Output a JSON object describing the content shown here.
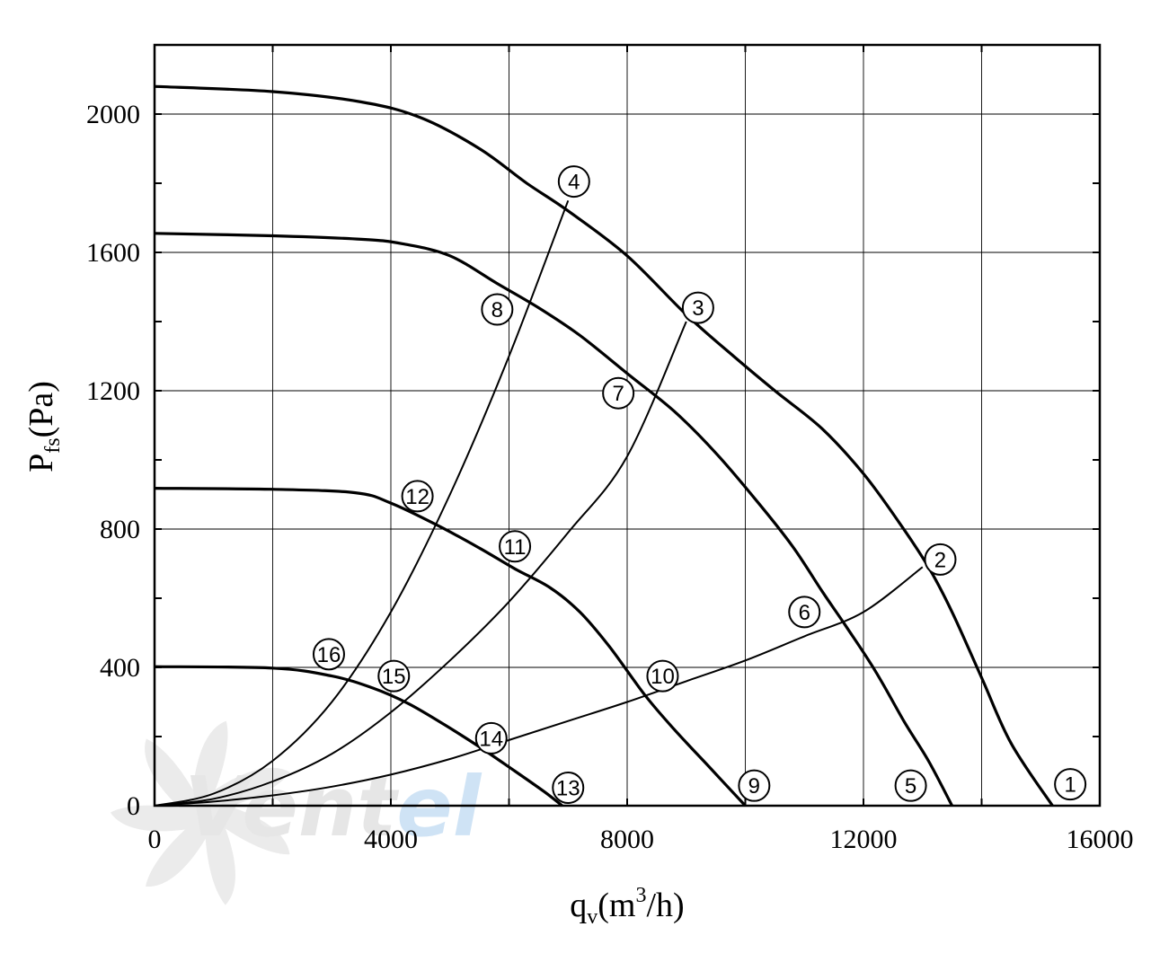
{
  "watermark": {
    "text_main": "Vent",
    "text_accent": "el",
    "color_main": "#e6e6e6",
    "color_accent": "#cfe3f5"
  },
  "chart_data": {
    "type": "line",
    "xlabel": {
      "base": "q",
      "sub": "v",
      "mid": "(m",
      "sup": "3",
      "tail": "/h)"
    },
    "ylabel": {
      "base": "P",
      "sub": "fs",
      "tail": "(Pa)"
    },
    "xlim": [
      0,
      16000
    ],
    "ylim": [
      0,
      2200
    ],
    "x_ticks": [
      0,
      4000,
      8000,
      12000,
      16000
    ],
    "x_tick_labels": [
      "0",
      "4000",
      "8000",
      "12000",
      "16000"
    ],
    "y_ticks": [
      0,
      400,
      800,
      1200,
      1600,
      2000
    ],
    "y_tick_labels": [
      "0",
      "400",
      "800",
      "1200",
      "1600",
      "2000"
    ],
    "x_grid": [
      0,
      2000,
      4000,
      6000,
      8000,
      10000,
      12000,
      14000,
      16000
    ],
    "y_grid": [
      0,
      400,
      800,
      1200,
      1600,
      2000
    ],
    "grid": true,
    "fan_curves": [
      {
        "points": [
          [
            0,
            2080
          ],
          [
            2000,
            2065
          ],
          [
            3500,
            2035
          ],
          [
            4500,
            1990
          ],
          [
            5500,
            1900
          ],
          [
            6300,
            1800
          ],
          [
            7000,
            1720
          ],
          [
            8000,
            1590
          ],
          [
            9000,
            1420
          ],
          [
            9800,
            1300
          ],
          [
            10500,
            1200
          ],
          [
            11300,
            1090
          ],
          [
            12000,
            960
          ],
          [
            12600,
            820
          ],
          [
            13100,
            690
          ],
          [
            13500,
            560
          ],
          [
            14000,
            370
          ],
          [
            14500,
            180
          ],
          [
            15200,
            0
          ]
        ]
      },
      {
        "points": [
          [
            0,
            1655
          ],
          [
            2000,
            1648
          ],
          [
            3500,
            1638
          ],
          [
            4200,
            1625
          ],
          [
            5000,
            1590
          ],
          [
            5800,
            1510
          ],
          [
            6500,
            1440
          ],
          [
            7200,
            1360
          ],
          [
            8000,
            1250
          ],
          [
            8800,
            1140
          ],
          [
            9500,
            1020
          ],
          [
            10200,
            880
          ],
          [
            10800,
            750
          ],
          [
            11300,
            620
          ],
          [
            11700,
            520
          ],
          [
            12200,
            390
          ],
          [
            12700,
            240
          ],
          [
            13100,
            130
          ],
          [
            13500,
            0
          ]
        ]
      },
      {
        "points": [
          [
            0,
            918
          ],
          [
            2000,
            915
          ],
          [
            3400,
            905
          ],
          [
            4000,
            875
          ],
          [
            4800,
            810
          ],
          [
            5500,
            745
          ],
          [
            6100,
            685
          ],
          [
            6700,
            630
          ],
          [
            7200,
            560
          ],
          [
            7700,
            460
          ],
          [
            8300,
            320
          ],
          [
            8800,
            220
          ],
          [
            9400,
            110
          ],
          [
            10000,
            0
          ]
        ]
      },
      {
        "points": [
          [
            0,
            402
          ],
          [
            2000,
            398
          ],
          [
            3000,
            375
          ],
          [
            3700,
            340
          ],
          [
            4300,
            295
          ],
          [
            4900,
            235
          ],
          [
            5500,
            170
          ],
          [
            6100,
            100
          ],
          [
            6600,
            40
          ],
          [
            6900,
            0
          ]
        ]
      }
    ],
    "system_curves": [
      {
        "points": [
          [
            0,
            0
          ],
          [
            1000,
            12
          ],
          [
            2000,
            30
          ],
          [
            3000,
            55
          ],
          [
            4000,
            90
          ],
          [
            5000,
            135
          ],
          [
            6000,
            190
          ],
          [
            7000,
            245
          ],
          [
            8000,
            300
          ],
          [
            9000,
            360
          ],
          [
            10000,
            420
          ],
          [
            11000,
            490
          ],
          [
            12000,
            560
          ],
          [
            13000,
            690
          ]
        ]
      },
      {
        "points": [
          [
            0,
            0
          ],
          [
            1000,
            20
          ],
          [
            2000,
            70
          ],
          [
            3000,
            150
          ],
          [
            4000,
            270
          ],
          [
            5000,
            420
          ],
          [
            6000,
            590
          ],
          [
            7000,
            790
          ],
          [
            8000,
            1010
          ],
          [
            9000,
            1400
          ]
        ]
      },
      {
        "points": [
          [
            0,
            0
          ],
          [
            1000,
            35
          ],
          [
            2000,
            130
          ],
          [
            3000,
            300
          ],
          [
            4000,
            560
          ],
          [
            5000,
            900
          ],
          [
            6000,
            1300
          ],
          [
            7000,
            1750
          ]
        ]
      }
    ],
    "markers": [
      {
        "label": "1",
        "x": 15500,
        "y": 62
      },
      {
        "label": "2",
        "x": 13300,
        "y": 712
      },
      {
        "label": "3",
        "x": 9200,
        "y": 1440
      },
      {
        "label": "4",
        "x": 7100,
        "y": 1805
      },
      {
        "label": "5",
        "x": 12800,
        "y": 58
      },
      {
        "label": "6",
        "x": 11000,
        "y": 560
      },
      {
        "label": "7",
        "x": 7850,
        "y": 1193
      },
      {
        "label": "8",
        "x": 5800,
        "y": 1435
      },
      {
        "label": "9",
        "x": 10150,
        "y": 58
      },
      {
        "label": "10",
        "x": 8600,
        "y": 375
      },
      {
        "label": "11",
        "x": 6100,
        "y": 750
      },
      {
        "label": "12",
        "x": 4450,
        "y": 895
      },
      {
        "label": "13",
        "x": 7000,
        "y": 52
      },
      {
        "label": "14",
        "x": 5700,
        "y": 195
      },
      {
        "label": "15",
        "x": 4050,
        "y": 375
      },
      {
        "label": "16",
        "x": 2950,
        "y": 438
      }
    ]
  }
}
